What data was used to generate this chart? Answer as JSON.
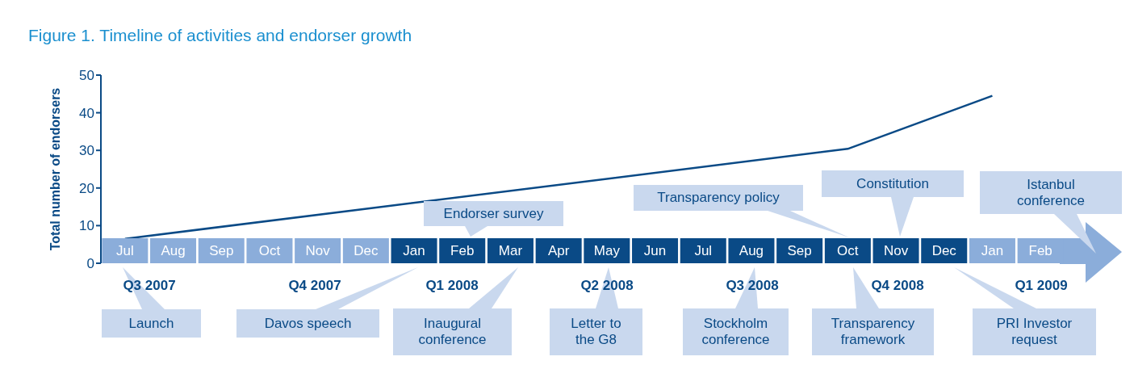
{
  "chart_data": {
    "type": "line",
    "title": "Figure 1. Timeline of activities and endorser growth",
    "ylabel": "Total number of endorsers",
    "categories": [
      "Jul",
      "Aug",
      "Sep",
      "Oct",
      "Nov",
      "Dec",
      "Jan",
      "Feb",
      "Mar",
      "Apr",
      "May",
      "Jun",
      "Jul",
      "Aug",
      "Sep",
      "Oct",
      "Nov",
      "Dec",
      "Jan",
      "Feb"
    ],
    "colors": [
      "#8badda",
      "#8badda",
      "#8badda",
      "#8badda",
      "#8badda",
      "#8badda",
      "#0a4a86",
      "#0a4a86",
      "#0a4a86",
      "#0a4a86",
      "#0a4a86",
      "#0a4a86",
      "#0a4a86",
      "#0a4a86",
      "#0a4a86",
      "#0a4a86",
      "#0a4a86",
      "#0a4a86",
      "#8badda",
      "#8badda"
    ],
    "series": [
      {
        "color": "#0a4a86",
        "values": [
          6.5,
          null,
          null,
          null,
          null,
          null,
          null,
          null,
          null,
          null,
          null,
          null,
          null,
          null,
          null,
          30.4,
          null,
          null,
          44.5,
          null
        ]
      }
    ],
    "ylim": [
      0,
      50
    ],
    "yticks": [
      0,
      10,
      20,
      30,
      40,
      50
    ],
    "marker": "none",
    "annotations": [
      "Q3 2007",
      "Q4 2007",
      "Q1 2008",
      "Q2 2008",
      "Q3 2008",
      "Q4 2008",
      "Q1 2009",
      "Launch",
      "Davos speech",
      "Inaugural conference",
      "Letter to the G8",
      "Stockholm conference",
      "Transparency framework",
      "PRI Investor request",
      "Endorser survey",
      "Transparency policy",
      "Constitution",
      "Istanbul conference"
    ]
  }
}
